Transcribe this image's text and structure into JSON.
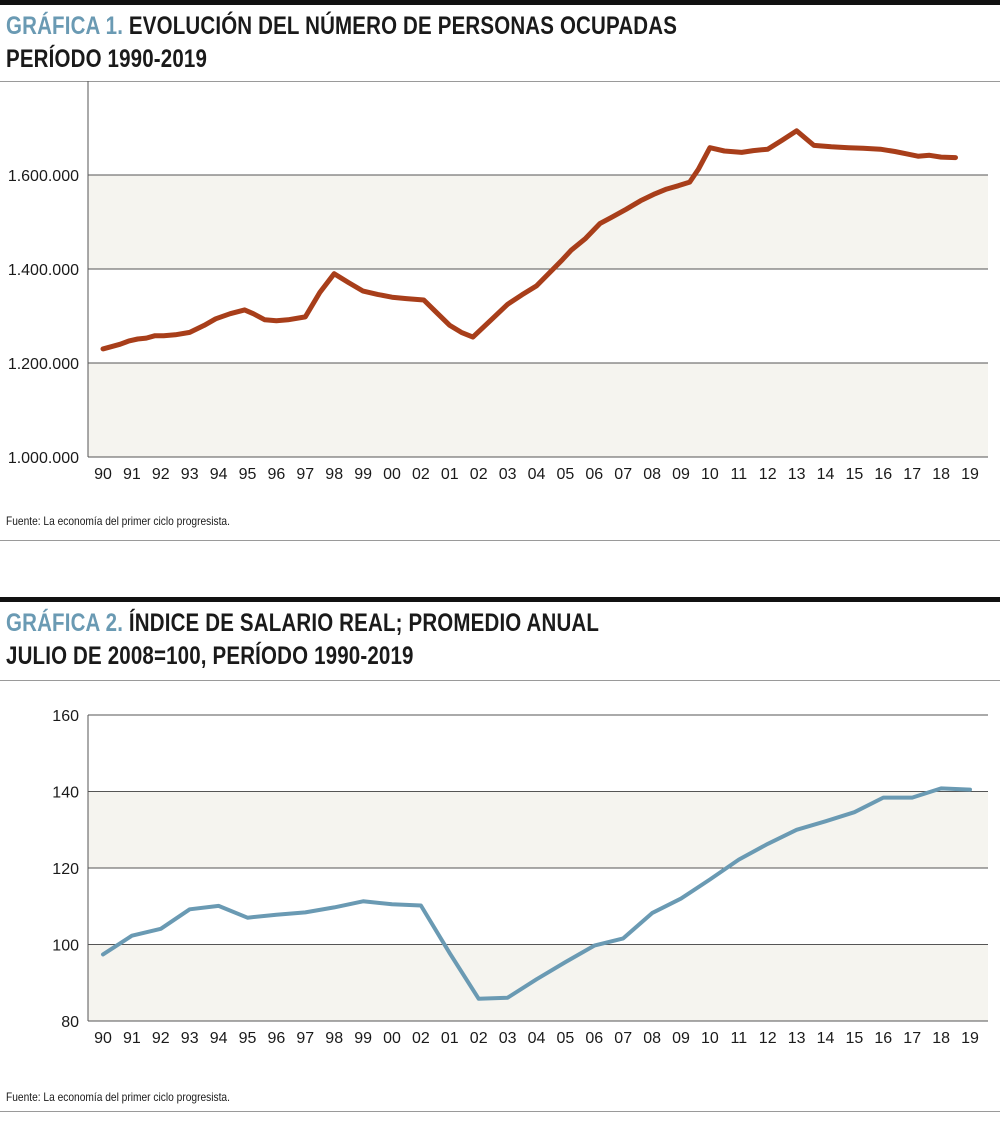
{
  "chart_data": [
    {
      "type": "line",
      "title_label": "GRÁFICA 1.",
      "title_line1": "EVOLUCIÓN DEL NÚMERO DE PERSONAS OCUPADAS",
      "title_line2": "PERÍODO 1990-2019",
      "source": "Fuente: La economía del primer ciclo progresista.",
      "x_tick_labels": [
        "90",
        "91",
        "92",
        "93",
        "94",
        "95",
        "96",
        "97",
        "98",
        "99",
        "00",
        "02",
        "01",
        "02",
        "03",
        "04",
        "05",
        "06",
        "07",
        "08",
        "09",
        "10",
        "11",
        "12",
        "13",
        "14",
        "15",
        "16",
        "17",
        "18",
        "19"
      ],
      "y_ticks": [
        1000000,
        1200000,
        1400000,
        1600000
      ],
      "y_tick_labels": [
        "1.000.000",
        "1.200.000",
        "1.400.000",
        "1.600.000"
      ],
      "ylim": [
        1000000,
        1800000
      ],
      "line_color": "#a83e1a",
      "band_color": "#f5f4ef",
      "grid": true,
      "series": [
        {
          "x": [
            0,
            0.3,
            0.6,
            0.9,
            1.2,
            1.5,
            1.8,
            2.1,
            2.5,
            3.0,
            3.5,
            3.9,
            4.4,
            4.9,
            5.2,
            5.6,
            6.0,
            6.4,
            7.0,
            7.5,
            8.0,
            8.5,
            9.0,
            9.5,
            10.0,
            10.5,
            11.1,
            11.5,
            12.0,
            12.4,
            12.8,
            13.4,
            14.0,
            14.5,
            15.0,
            15.5,
            15.9,
            16.2,
            16.7,
            17.2,
            17.6,
            18.1,
            18.6,
            19.1,
            19.5,
            19.9,
            20.3,
            20.6,
            21.0,
            21.5,
            22.1,
            22.5,
            23.0,
            23.5,
            24.0,
            24.6,
            25.2,
            25.8,
            26.3,
            26.9,
            27.4,
            27.8,
            28.2,
            28.6,
            29.0,
            29.5
          ],
          "y": [
            1230000,
            1235000,
            1240000,
            1247000,
            1251000,
            1253000,
            1258000,
            1258000,
            1260000,
            1265000,
            1280000,
            1294000,
            1305000,
            1313000,
            1305000,
            1292000,
            1290000,
            1292000,
            1298000,
            1350000,
            1390000,
            1371000,
            1353000,
            1346000,
            1340000,
            1337000,
            1334000,
            1310000,
            1280000,
            1265000,
            1255000,
            1290000,
            1325000,
            1345000,
            1364000,
            1395000,
            1420000,
            1440000,
            1465000,
            1497000,
            1510000,
            1527000,
            1545000,
            1560000,
            1570000,
            1577000,
            1585000,
            1612000,
            1658000,
            1651000,
            1648000,
            1652000,
            1655000,
            1674000,
            1694000,
            1663000,
            1660000,
            1658000,
            1657000,
            1655000,
            1650000,
            1645000,
            1640000,
            1642000,
            1638000,
            1637000
          ]
        }
      ]
    },
    {
      "type": "line",
      "title_label": "GRÁFICA 2.",
      "title_line1": "ÍNDICE DE SALARIO REAL; PROMEDIO ANUAL",
      "title_line2": "JULIO DE 2008=100, PERÍODO 1990-2019",
      "source": "Fuente: La economía del primer ciclo progresista.",
      "x_tick_labels": [
        "90",
        "91",
        "92",
        "93",
        "94",
        "95",
        "96",
        "97",
        "98",
        "99",
        "00",
        "02",
        "01",
        "02",
        "03",
        "04",
        "05",
        "06",
        "07",
        "08",
        "09",
        "10",
        "11",
        "12",
        "13",
        "14",
        "15",
        "16",
        "17",
        "18",
        "19"
      ],
      "y_ticks": [
        80,
        100,
        120,
        140,
        160
      ],
      "y_tick_labels": [
        "80",
        "100",
        "120",
        "140",
        "160"
      ],
      "ylim": [
        80,
        160
      ],
      "line_color": "#6a9ab3",
      "band_color": "#f5f4ef",
      "grid": true,
      "series": [
        {
          "x": [
            0,
            1,
            2,
            3,
            4,
            5,
            6,
            7,
            8,
            9,
            10,
            11,
            12,
            13,
            14,
            15,
            16,
            17,
            18,
            19,
            20,
            21,
            22,
            23,
            24,
            25,
            26,
            27,
            28,
            29,
            30
          ],
          "y": [
            97.4,
            102.3,
            104.1,
            109.2,
            110.1,
            107.0,
            107.8,
            108.4,
            109.7,
            111.3,
            110.5,
            110.2,
            97.7,
            85.8,
            86.1,
            90.9,
            95.4,
            99.7,
            101.6,
            108.2,
            112.0,
            117.0,
            122.2,
            126.3,
            130.0,
            132.2,
            134.6,
            138.4,
            138.4,
            140.8,
            140.5
          ]
        }
      ]
    }
  ]
}
